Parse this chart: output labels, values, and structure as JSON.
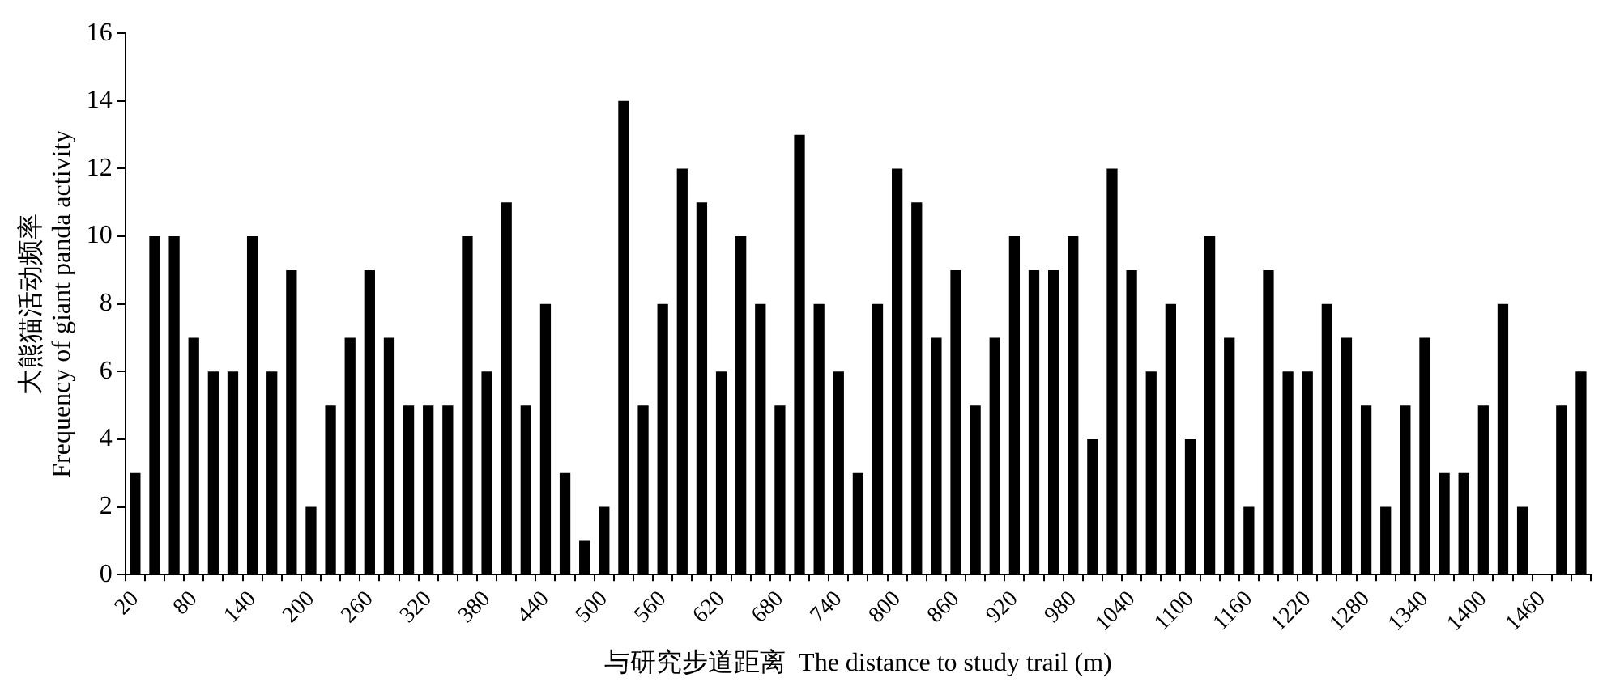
{
  "chart_data": {
    "type": "bar",
    "xlabel": "与研究步道距离  The distance to study trail (m)",
    "ylabel": "大熊猫活动频率\nFrequency of giant panda activity",
    "categories": [
      "20",
      null,
      null,
      "80",
      null,
      null,
      "140",
      null,
      null,
      "200",
      null,
      null,
      "260",
      null,
      null,
      "320",
      null,
      null,
      "380",
      null,
      null,
      "440",
      null,
      null,
      "500",
      null,
      null,
      "560",
      null,
      null,
      "620",
      null,
      null,
      "680",
      null,
      null,
      "740",
      null,
      null,
      "800",
      null,
      null,
      "860",
      null,
      null,
      "920",
      null,
      null,
      "980",
      null,
      null,
      "1040",
      null,
      null,
      "1100",
      null,
      null,
      "1160",
      null,
      null,
      "1220",
      null,
      null,
      "1280",
      null,
      null,
      "1340",
      null,
      null,
      "1400",
      null,
      null,
      "1460",
      null,
      null
    ],
    "values": [
      3,
      10,
      10,
      7,
      6,
      6,
      10,
      6,
      9,
      2,
      5,
      7,
      9,
      7,
      5,
      5,
      5,
      10,
      6,
      11,
      5,
      8,
      3,
      1,
      2,
      14,
      5,
      8,
      12,
      11,
      6,
      10,
      8,
      5,
      13,
      8,
      6,
      3,
      8,
      12,
      11,
      7,
      9,
      5,
      7,
      10,
      9,
      9,
      10,
      4,
      12,
      9,
      6,
      8,
      4,
      10,
      7,
      2,
      9,
      6,
      6,
      8,
      7,
      5,
      2,
      5,
      7,
      3,
      3,
      5,
      8,
      2,
      0,
      5,
      6
    ],
    "color": "#000000",
    "ylim": [
      0,
      16
    ],
    "yticks": [
      0,
      2,
      4,
      6,
      8,
      10,
      12,
      14,
      16
    ],
    "grid": false,
    "legend": false
  }
}
